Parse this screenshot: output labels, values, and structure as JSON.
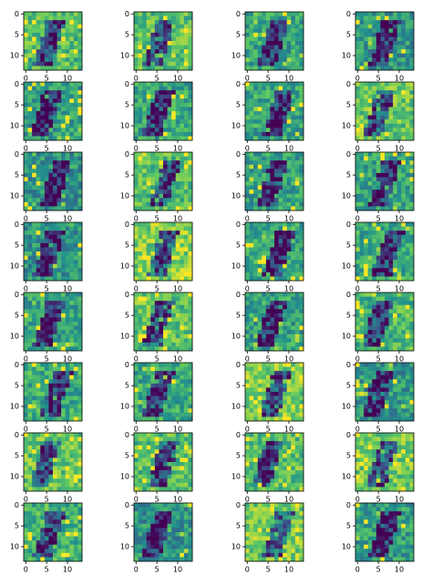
{
  "chart_data": [
    {
      "type": "image",
      "cmap": "viridis",
      "xlim": [
        -0.5,
        13.5
      ],
      "ylim": [
        13.5,
        -0.5
      ],
      "xticks": [
        0,
        5,
        10
      ],
      "yticks": [
        0,
        5,
        10
      ]
    },
    {
      "type": "image",
      "cmap": "viridis",
      "xlim": [
        -0.5,
        13.5
      ],
      "ylim": [
        13.5,
        -0.5
      ],
      "xticks": [
        0,
        5,
        10
      ],
      "yticks": [
        0,
        5,
        10
      ]
    },
    {
      "type": "image",
      "cmap": "viridis",
      "xlim": [
        -0.5,
        13.5
      ],
      "ylim": [
        13.5,
        -0.5
      ],
      "xticks": [
        0,
        5,
        10
      ],
      "yticks": [
        0,
        5,
        10
      ]
    },
    {
      "type": "image",
      "cmap": "viridis",
      "xlim": [
        -0.5,
        13.5
      ],
      "ylim": [
        13.5,
        -0.5
      ],
      "xticks": [
        0,
        5,
        10
      ],
      "yticks": [
        0,
        5,
        10
      ]
    },
    {
      "type": "image",
      "cmap": "viridis",
      "xlim": [
        -0.5,
        13.5
      ],
      "ylim": [
        13.5,
        -0.5
      ],
      "xticks": [
        0,
        5,
        10
      ],
      "yticks": [
        0,
        5,
        10
      ]
    },
    {
      "type": "image",
      "cmap": "viridis",
      "xlim": [
        -0.5,
        13.5
      ],
      "ylim": [
        13.5,
        -0.5
      ],
      "xticks": [
        0,
        5,
        10
      ],
      "yticks": [
        0,
        5,
        10
      ]
    },
    {
      "type": "image",
      "cmap": "viridis",
      "xlim": [
        -0.5,
        13.5
      ],
      "ylim": [
        13.5,
        -0.5
      ],
      "xticks": [
        0,
        5,
        10
      ],
      "yticks": [
        0,
        5,
        10
      ]
    },
    {
      "type": "image",
      "cmap": "viridis",
      "xlim": [
        -0.5,
        13.5
      ],
      "ylim": [
        13.5,
        -0.5
      ],
      "xticks": [
        0,
        5,
        10
      ],
      "yticks": [
        0,
        5,
        10
      ]
    },
    {
      "type": "image",
      "cmap": "viridis",
      "xlim": [
        -0.5,
        13.5
      ],
      "ylim": [
        13.5,
        -0.5
      ],
      "xticks": [
        0,
        5,
        10
      ],
      "yticks": [
        0,
        5,
        10
      ]
    },
    {
      "type": "image",
      "cmap": "viridis",
      "xlim": [
        -0.5,
        13.5
      ],
      "ylim": [
        13.5,
        -0.5
      ],
      "xticks": [
        0,
        5,
        10
      ],
      "yticks": [
        0,
        5,
        10
      ]
    },
    {
      "type": "image",
      "cmap": "viridis",
      "xlim": [
        -0.5,
        13.5
      ],
      "ylim": [
        13.5,
        -0.5
      ],
      "xticks": [
        0,
        5,
        10
      ],
      "yticks": [
        0,
        5,
        10
      ]
    },
    {
      "type": "image",
      "cmap": "viridis",
      "xlim": [
        -0.5,
        13.5
      ],
      "ylim": [
        13.5,
        -0.5
      ],
      "xticks": [
        0,
        5,
        10
      ],
      "yticks": [
        0,
        5,
        10
      ]
    },
    {
      "type": "image",
      "cmap": "viridis",
      "xlim": [
        -0.5,
        13.5
      ],
      "ylim": [
        13.5,
        -0.5
      ],
      "xticks": [
        0,
        5,
        10
      ],
      "yticks": [
        0,
        5,
        10
      ]
    },
    {
      "type": "image",
      "cmap": "viridis",
      "xlim": [
        -0.5,
        13.5
      ],
      "ylim": [
        13.5,
        -0.5
      ],
      "xticks": [
        0,
        5,
        10
      ],
      "yticks": [
        0,
        5,
        10
      ]
    },
    {
      "type": "image",
      "cmap": "viridis",
      "xlim": [
        -0.5,
        13.5
      ],
      "ylim": [
        13.5,
        -0.5
      ],
      "xticks": [
        0,
        5,
        10
      ],
      "yticks": [
        0,
        5,
        10
      ]
    },
    {
      "type": "image",
      "cmap": "viridis",
      "xlim": [
        -0.5,
        13.5
      ],
      "ylim": [
        13.5,
        -0.5
      ],
      "xticks": [
        0,
        5,
        10
      ],
      "yticks": [
        0,
        5,
        10
      ]
    },
    {
      "type": "image",
      "cmap": "viridis",
      "xlim": [
        -0.5,
        13.5
      ],
      "ylim": [
        13.5,
        -0.5
      ],
      "xticks": [
        0,
        5,
        10
      ],
      "yticks": [
        0,
        5,
        10
      ]
    },
    {
      "type": "image",
      "cmap": "viridis",
      "xlim": [
        -0.5,
        13.5
      ],
      "ylim": [
        13.5,
        -0.5
      ],
      "xticks": [
        0,
        5,
        10
      ],
      "yticks": [
        0,
        5,
        10
      ]
    },
    {
      "type": "image",
      "cmap": "viridis",
      "xlim": [
        -0.5,
        13.5
      ],
      "ylim": [
        13.5,
        -0.5
      ],
      "xticks": [
        0,
        5,
        10
      ],
      "yticks": [
        0,
        5,
        10
      ]
    },
    {
      "type": "image",
      "cmap": "viridis",
      "xlim": [
        -0.5,
        13.5
      ],
      "ylim": [
        13.5,
        -0.5
      ],
      "xticks": [
        0,
        5,
        10
      ],
      "yticks": [
        0,
        5,
        10
      ]
    },
    {
      "type": "image",
      "cmap": "viridis",
      "xlim": [
        -0.5,
        13.5
      ],
      "ylim": [
        13.5,
        -0.5
      ],
      "xticks": [
        0,
        5,
        10
      ],
      "yticks": [
        0,
        5,
        10
      ]
    },
    {
      "type": "image",
      "cmap": "viridis",
      "xlim": [
        -0.5,
        13.5
      ],
      "ylim": [
        13.5,
        -0.5
      ],
      "xticks": [
        0,
        5,
        10
      ],
      "yticks": [
        0,
        5,
        10
      ]
    },
    {
      "type": "image",
      "cmap": "viridis",
      "xlim": [
        -0.5,
        13.5
      ],
      "ylim": [
        13.5,
        -0.5
      ],
      "xticks": [
        0,
        5,
        10
      ],
      "yticks": [
        0,
        5,
        10
      ]
    },
    {
      "type": "image",
      "cmap": "viridis",
      "xlim": [
        -0.5,
        13.5
      ],
      "ylim": [
        13.5,
        -0.5
      ],
      "xticks": [
        0,
        5,
        10
      ],
      "yticks": [
        0,
        5,
        10
      ]
    },
    {
      "type": "image",
      "cmap": "viridis",
      "xlim": [
        -0.5,
        13.5
      ],
      "ylim": [
        13.5,
        -0.5
      ],
      "xticks": [
        0,
        5,
        10
      ],
      "yticks": [
        0,
        5,
        10
      ]
    },
    {
      "type": "image",
      "cmap": "viridis",
      "xlim": [
        -0.5,
        13.5
      ],
      "ylim": [
        13.5,
        -0.5
      ],
      "xticks": [
        0,
        5,
        10
      ],
      "yticks": [
        0,
        5,
        10
      ]
    },
    {
      "type": "image",
      "cmap": "viridis",
      "xlim": [
        -0.5,
        13.5
      ],
      "ylim": [
        13.5,
        -0.5
      ],
      "xticks": [
        0,
        5,
        10
      ],
      "yticks": [
        0,
        5,
        10
      ]
    },
    {
      "type": "image",
      "cmap": "viridis",
      "xlim": [
        -0.5,
        13.5
      ],
      "ylim": [
        13.5,
        -0.5
      ],
      "xticks": [
        0,
        5,
        10
      ],
      "yticks": [
        0,
        5,
        10
      ]
    },
    {
      "type": "image",
      "cmap": "viridis",
      "xlim": [
        -0.5,
        13.5
      ],
      "ylim": [
        13.5,
        -0.5
      ],
      "xticks": [
        0,
        5,
        10
      ],
      "yticks": [
        0,
        5,
        10
      ]
    },
    {
      "type": "image",
      "cmap": "viridis",
      "xlim": [
        -0.5,
        13.5
      ],
      "ylim": [
        13.5,
        -0.5
      ],
      "xticks": [
        0,
        5,
        10
      ],
      "yticks": [
        0,
        5,
        10
      ]
    },
    {
      "type": "image",
      "cmap": "viridis",
      "xlim": [
        -0.5,
        13.5
      ],
      "ylim": [
        13.5,
        -0.5
      ],
      "xticks": [
        0,
        5,
        10
      ],
      "yticks": [
        0,
        5,
        10
      ]
    },
    {
      "type": "image",
      "cmap": "viridis",
      "xlim": [
        -0.5,
        13.5
      ],
      "ylim": [
        13.5,
        -0.5
      ],
      "xticks": [
        0,
        5,
        10
      ],
      "yticks": [
        0,
        5,
        10
      ]
    }
  ]
}
